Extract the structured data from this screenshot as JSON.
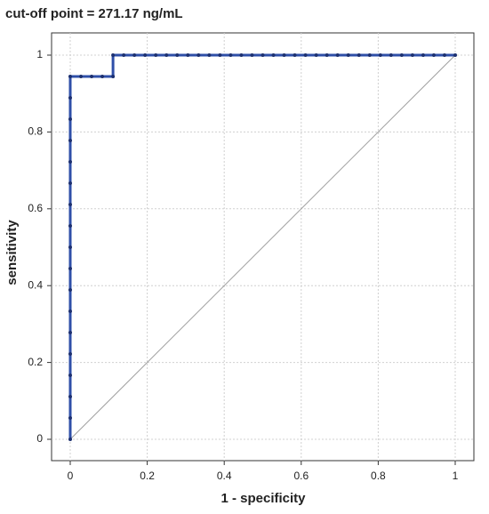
{
  "chart_data": {
    "type": "line",
    "title": "cut-off point = 271.17 ng/mL",
    "x_label": "1 - specificity",
    "y_label": "sensitivity",
    "xlim": [
      0,
      1
    ],
    "ylim": [
      0,
      1
    ],
    "xticks": [
      0,
      0.2,
      0.4,
      0.6,
      0.8,
      1
    ],
    "yticks": [
      0,
      0.2,
      0.4,
      0.6,
      0.8,
      1
    ],
    "grid": true,
    "series": [
      {
        "color": "#2f4fa8",
        "x": [
          0,
          0,
          0,
          0,
          0,
          0,
          0,
          0,
          0,
          0,
          0,
          0,
          0,
          0,
          0,
          0,
          0,
          0,
          0.0278,
          0.0556,
          0.0833,
          0.1111,
          0.1111,
          0.1389,
          0.1667,
          0.1944,
          0.2222,
          0.25,
          0.2778,
          0.3056,
          0.3333,
          0.3611,
          0.3889,
          0.4167,
          0.4444,
          0.4722,
          0.5,
          0.5278,
          0.5556,
          0.5833,
          0.6111,
          0.6389,
          0.6667,
          0.6944,
          0.7222,
          0.75,
          0.7778,
          0.8056,
          0.8333,
          0.8611,
          0.8889,
          0.9167,
          0.9444,
          0.9722,
          1
        ],
        "values": [
          0,
          0.0556,
          0.1111,
          0.1667,
          0.2222,
          0.2778,
          0.3333,
          0.3889,
          0.4444,
          0.5,
          0.5556,
          0.6111,
          0.6667,
          0.7222,
          0.7778,
          0.8333,
          0.8889,
          0.9444,
          0.9444,
          0.9444,
          0.9444,
          0.9444,
          1,
          1,
          1,
          1,
          1,
          1,
          1,
          1,
          1,
          1,
          1,
          1,
          1,
          1,
          1,
          1,
          1,
          1,
          1,
          1,
          1,
          1,
          1,
          1,
          1,
          1,
          1,
          1,
          1,
          1,
          1,
          1,
          1
        ]
      }
    ],
    "reference_line": {
      "x": [
        0,
        1
      ],
      "values": [
        0,
        1
      ],
      "color": "#a0a0a0"
    }
  }
}
